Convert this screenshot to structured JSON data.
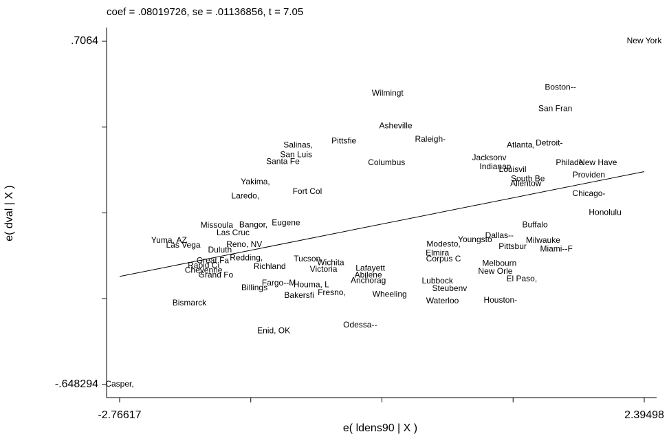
{
  "chart_data": {
    "type": "scatter",
    "title": "coef = .08019726, se = .01136856, t = 7.05",
    "x_label": "e( ldens90 | X )",
    "y_label": "e( dval | X )",
    "xlim": [
      -2.76617,
      2.39498
    ],
    "ylim": [
      -0.648294,
      0.7064
    ],
    "xticks": [
      -2.76617,
      2.39498
    ],
    "xtick_marks": [
      -2.76617,
      -1.4758825,
      -0.185595,
      1.1046925,
      2.39498
    ],
    "yticks": [
      {
        "value": -0.648294,
        "label": "-.648294"
      },
      {
        "value": 0.7064,
        "label": ".7064"
      }
    ],
    "ytick_marks": [
      -0.648294,
      -0.3096205,
      0.029053,
      0.3677265,
      0.7064
    ],
    "fit_slope": 0.08019726,
    "color": "#000000",
    "labels": [
      "New York",
      "Boston--",
      "Wilmingt",
      "San Fran",
      "Asheville",
      "Detroit-",
      "Raleigh-",
      "Pittsfie",
      "Salinas,",
      "Atlanta,",
      "San Luis",
      "Santa Fe",
      "Jacksonv",
      "Philade",
      "New Have",
      "Providen",
      "Indianap",
      "Louisvil",
      "Yakima,",
      "Laredo,",
      "Fort Col",
      "South Be",
      "Allentow",
      "Chicago-",
      "Honolulu",
      "Missoula",
      "Bangor,",
      "Eugene",
      "Las Cruc",
      "Yuma, AZ",
      "Las Vega",
      "Reno, NV",
      "Duluth",
      "Redding,",
      "Great Fa",
      "Rapid Ci",
      "Cheyenne",
      "Grand Fo",
      "Richland",
      "Tucson,",
      "Wichita",
      "Victoria",
      "Fargo--M",
      "Houma, L",
      "Billings",
      "Bakersfi",
      "Fresno,",
      "Bismarck",
      "Enid, OK",
      "Odessa--",
      "Casper,",
      "Milwauke",
      "Miami--F",
      "Pittsbur",
      "Buffalo",
      "El Paso,",
      "Houston-",
      "Waterloo",
      "Lubbock",
      "Melbourn",
      "New Orle",
      "Abilene",
      "Anchorag",
      "Wheeling",
      "Modesto,",
      "Steubenv",
      "Dallas--",
      "Corpus C",
      "Youngsto",
      "Lafayett",
      "Elmira",
      "Columbus"
    ],
    "x": [
      2.39498,
      1.57,
      -0.13,
      1.52,
      -0.05,
      1.46,
      0.29,
      -0.56,
      -1.01,
      1.18,
      -1.03,
      -1.16,
      0.87,
      1.66,
      1.94,
      1.85,
      0.93,
      1.1,
      -1.43,
      -1.53,
      -0.92,
      1.25,
      1.23,
      1.85,
      2.01,
      -1.81,
      -1.45,
      -1.13,
      -1.65,
      -2.28,
      -2.14,
      -1.54,
      -1.78,
      -1.52,
      -1.85,
      -1.94,
      -1.94,
      -1.82,
      -1.29,
      -0.91,
      -0.69,
      -0.76,
      -1.2,
      -0.88,
      -1.44,
      -1.0,
      -0.68,
      -2.08,
      -1.25,
      -0.4,
      -2.76617,
      1.4,
      1.53,
      1.1,
      1.32,
      1.19,
      0.98,
      0.41,
      0.36,
      0.97,
      0.93,
      -0.32,
      -0.32,
      -0.11,
      0.42,
      0.48,
      0.97,
      0.42,
      0.73,
      -0.3,
      0.36,
      -0.14
    ],
    "y": [
      0.7064,
      0.524,
      0.5,
      0.44,
      0.372,
      0.304,
      0.318,
      0.312,
      0.296,
      0.296,
      0.258,
      0.231,
      0.245,
      0.226,
      0.226,
      0.177,
      0.21,
      0.199,
      0.15,
      0.095,
      0.112,
      0.163,
      0.144,
      0.104,
      0.03,
      -0.021,
      -0.019,
      -0.011,
      -0.051,
      -0.081,
      -0.1,
      -0.097,
      -0.119,
      -0.149,
      -0.16,
      -0.179,
      -0.198,
      -0.217,
      -0.184,
      -0.154,
      -0.168,
      -0.195,
      -0.249,
      -0.255,
      -0.268,
      -0.298,
      -0.287,
      -0.328,
      -0.437,
      -0.415,
      -0.648294,
      -0.081,
      -0.114,
      -0.105,
      -0.019,
      -0.233,
      -0.317,
      -0.32,
      -0.241,
      -0.171,
      -0.203,
      -0.217,
      -0.239,
      -0.293,
      -0.095,
      -0.271,
      -0.062,
      -0.154,
      -0.078,
      -0.19,
      -0.13,
      0.226
    ]
  }
}
